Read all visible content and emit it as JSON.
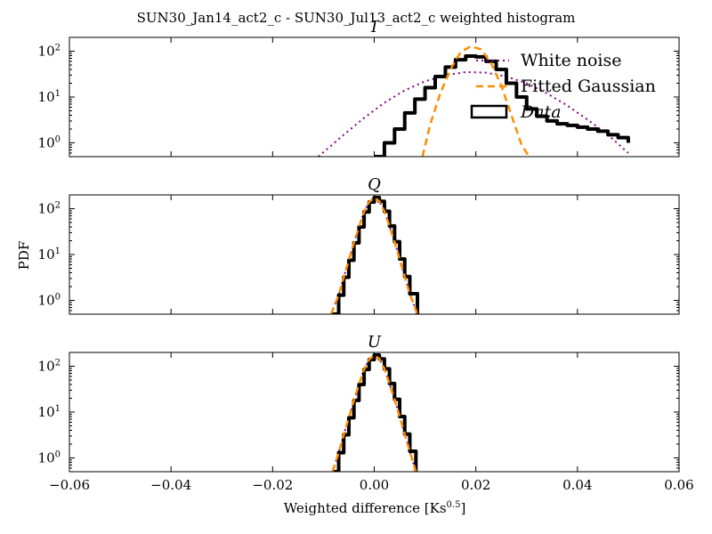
{
  "figure": {
    "suptitle": "SUN30_Jan14_act2_c - SUN30_Jul13_act2_c weighted histogram",
    "ylabel": "PDF",
    "xlabel_main": "Weighted difference [Ks",
    "xlabel_exp": "0.5",
    "xlabel_close": "]"
  },
  "colors": {
    "data": "#000000",
    "fitted_gaussian": "#ff8c00",
    "white_noise": "#800080"
  },
  "legend": {
    "entries": [
      {
        "label": "White noise",
        "style": "dotted",
        "color": "#800080"
      },
      {
        "label": "Fitted Gaussian",
        "style": "dashed",
        "color": "#ff8c00"
      },
      {
        "label": "Data",
        "style": "step",
        "color": "#000000"
      }
    ],
    "placement": "upper-right of panel I"
  },
  "chart_data": [
    {
      "type": "line",
      "title": "I",
      "xlim": [
        -0.06,
        0.06
      ],
      "ylim": [
        0.5,
        200
      ],
      "yscale": "log",
      "xticks": [
        "−0.06",
        "−0.04",
        "−0.02",
        "0.00",
        "0.02",
        "0.04",
        "0.06"
      ],
      "yticks": [
        {
          "label": "10",
          "exp": "0"
        },
        {
          "label": "10",
          "exp": "1"
        },
        {
          "label": "10",
          "exp": "2"
        }
      ],
      "show_xtick_labels": false,
      "series": [
        {
          "name": "Data",
          "style": "step",
          "x": [
            0.0,
            0.002,
            0.004,
            0.006,
            0.008,
            0.01,
            0.012,
            0.014,
            0.016,
            0.018,
            0.02,
            0.022,
            0.024,
            0.026,
            0.028,
            0.03,
            0.032,
            0.034,
            0.036,
            0.038,
            0.04,
            0.042,
            0.044,
            0.046,
            0.048,
            0.05
          ],
          "y": [
            0.5,
            1.0,
            2.0,
            4.5,
            9,
            16,
            28,
            45,
            65,
            78,
            75,
            60,
            40,
            20,
            10,
            5.5,
            3.8,
            3.0,
            2.6,
            2.4,
            2.2,
            2.0,
            1.8,
            1.5,
            1.3,
            1.0
          ]
        },
        {
          "name": "Fitted Gaussian",
          "style": "dashed",
          "x": [
            0.0095,
            0.011,
            0.013,
            0.015,
            0.017,
            0.019,
            0.021,
            0.023,
            0.025,
            0.027,
            0.029,
            0.0305
          ],
          "y": [
            0.5,
            2.5,
            12,
            40,
            95,
            128,
            110,
            55,
            18,
            4,
            0.9,
            0.5
          ]
        },
        {
          "name": "White noise",
          "style": "dotted",
          "x": [
            -0.011,
            -0.006,
            -0.002,
            0.002,
            0.006,
            0.01,
            0.014,
            0.018,
            0.022,
            0.026,
            0.03,
            0.034,
            0.038,
            0.042,
            0.046,
            0.05
          ],
          "y": [
            0.5,
            1.5,
            3.5,
            7.5,
            14,
            22,
            30,
            35,
            34,
            28,
            20,
            12,
            6.5,
            3.2,
            1.5,
            0.6
          ]
        }
      ]
    },
    {
      "type": "line",
      "title": "Q",
      "xlim": [
        -0.06,
        0.06
      ],
      "ylim": [
        0.5,
        200
      ],
      "yscale": "log",
      "xticks": [
        "−0.06",
        "−0.04",
        "−0.02",
        "0.00",
        "0.02",
        "0.04",
        "0.06"
      ],
      "yticks": [
        {
          "label": "10",
          "exp": "0"
        },
        {
          "label": "10",
          "exp": "1"
        },
        {
          "label": "10",
          "exp": "2"
        }
      ],
      "show_xtick_labels": false,
      "series": [
        {
          "name": "Data",
          "style": "step",
          "x": [
            -0.0085,
            -0.007,
            -0.006,
            -0.005,
            -0.004,
            -0.003,
            -0.002,
            -0.001,
            0.0,
            0.001,
            0.002,
            0.003,
            0.004,
            0.005,
            0.006,
            0.007,
            0.0085
          ],
          "y": [
            0.5,
            1.3,
            3.2,
            7.5,
            18,
            40,
            85,
            140,
            175,
            145,
            88,
            42,
            19,
            8,
            3.3,
            1.4,
            0.5
          ]
        },
        {
          "name": "Fitted Gaussian",
          "style": "dashed",
          "x": [
            -0.0085,
            -0.007,
            -0.006,
            -0.005,
            -0.004,
            -0.003,
            -0.002,
            -0.001,
            0.0,
            0.001,
            0.002,
            0.003,
            0.004,
            0.005,
            0.006,
            0.007,
            0.0085
          ],
          "y": [
            0.5,
            1.3,
            3.2,
            7.5,
            18,
            40,
            85,
            140,
            175,
            145,
            88,
            42,
            19,
            8,
            3.3,
            1.4,
            0.5
          ]
        },
        {
          "name": "White noise",
          "style": "dotted",
          "x": [
            -0.0085,
            -0.007,
            -0.006,
            -0.005,
            -0.004,
            -0.003,
            -0.002,
            -0.001,
            0.0,
            0.001,
            0.002,
            0.003,
            0.004,
            0.005,
            0.006,
            0.007,
            0.0085
          ],
          "y": [
            0.5,
            1.3,
            3.2,
            7.5,
            18,
            40,
            85,
            140,
            175,
            145,
            88,
            42,
            19,
            8,
            3.3,
            1.4,
            0.5
          ]
        }
      ]
    },
    {
      "type": "line",
      "title": "U",
      "xlim": [
        -0.06,
        0.06
      ],
      "ylim": [
        0.5,
        200
      ],
      "yscale": "log",
      "xticks": [
        "−0.06",
        "−0.04",
        "−0.02",
        "0.00",
        "0.02",
        "0.04",
        "0.06"
      ],
      "yticks": [
        {
          "label": "10",
          "exp": "0"
        },
        {
          "label": "10",
          "exp": "1"
        },
        {
          "label": "10",
          "exp": "2"
        }
      ],
      "show_xtick_labels": true,
      "series": [
        {
          "name": "Data",
          "style": "step",
          "x": [
            -0.0082,
            -0.007,
            -0.006,
            -0.005,
            -0.004,
            -0.003,
            -0.002,
            -0.001,
            0.0,
            0.001,
            0.002,
            0.003,
            0.004,
            0.005,
            0.006,
            0.007,
            0.0082
          ],
          "y": [
            0.5,
            1.3,
            3.2,
            7.5,
            18,
            40,
            85,
            140,
            175,
            145,
            88,
            42,
            19,
            8,
            3.3,
            1.4,
            0.5
          ]
        },
        {
          "name": "Fitted Gaussian",
          "style": "dashed",
          "x": [
            -0.0082,
            -0.007,
            -0.006,
            -0.005,
            -0.004,
            -0.003,
            -0.002,
            -0.001,
            0.0,
            0.001,
            0.002,
            0.003,
            0.004,
            0.005,
            0.006,
            0.007,
            0.0082
          ],
          "y": [
            0.5,
            1.3,
            3.2,
            7.5,
            18,
            40,
            85,
            140,
            175,
            145,
            88,
            42,
            19,
            8,
            3.3,
            1.4,
            0.5
          ]
        },
        {
          "name": "White noise",
          "style": "dotted",
          "x": [
            -0.0082,
            -0.007,
            -0.006,
            -0.005,
            -0.004,
            -0.003,
            -0.002,
            -0.001,
            0.0,
            0.001,
            0.002,
            0.003,
            0.004,
            0.005,
            0.006,
            0.007,
            0.0082
          ],
          "y": [
            0.5,
            1.3,
            3.2,
            7.5,
            18,
            40,
            85,
            140,
            175,
            145,
            88,
            42,
            19,
            8,
            3.3,
            1.4,
            0.5
          ]
        }
      ]
    }
  ]
}
